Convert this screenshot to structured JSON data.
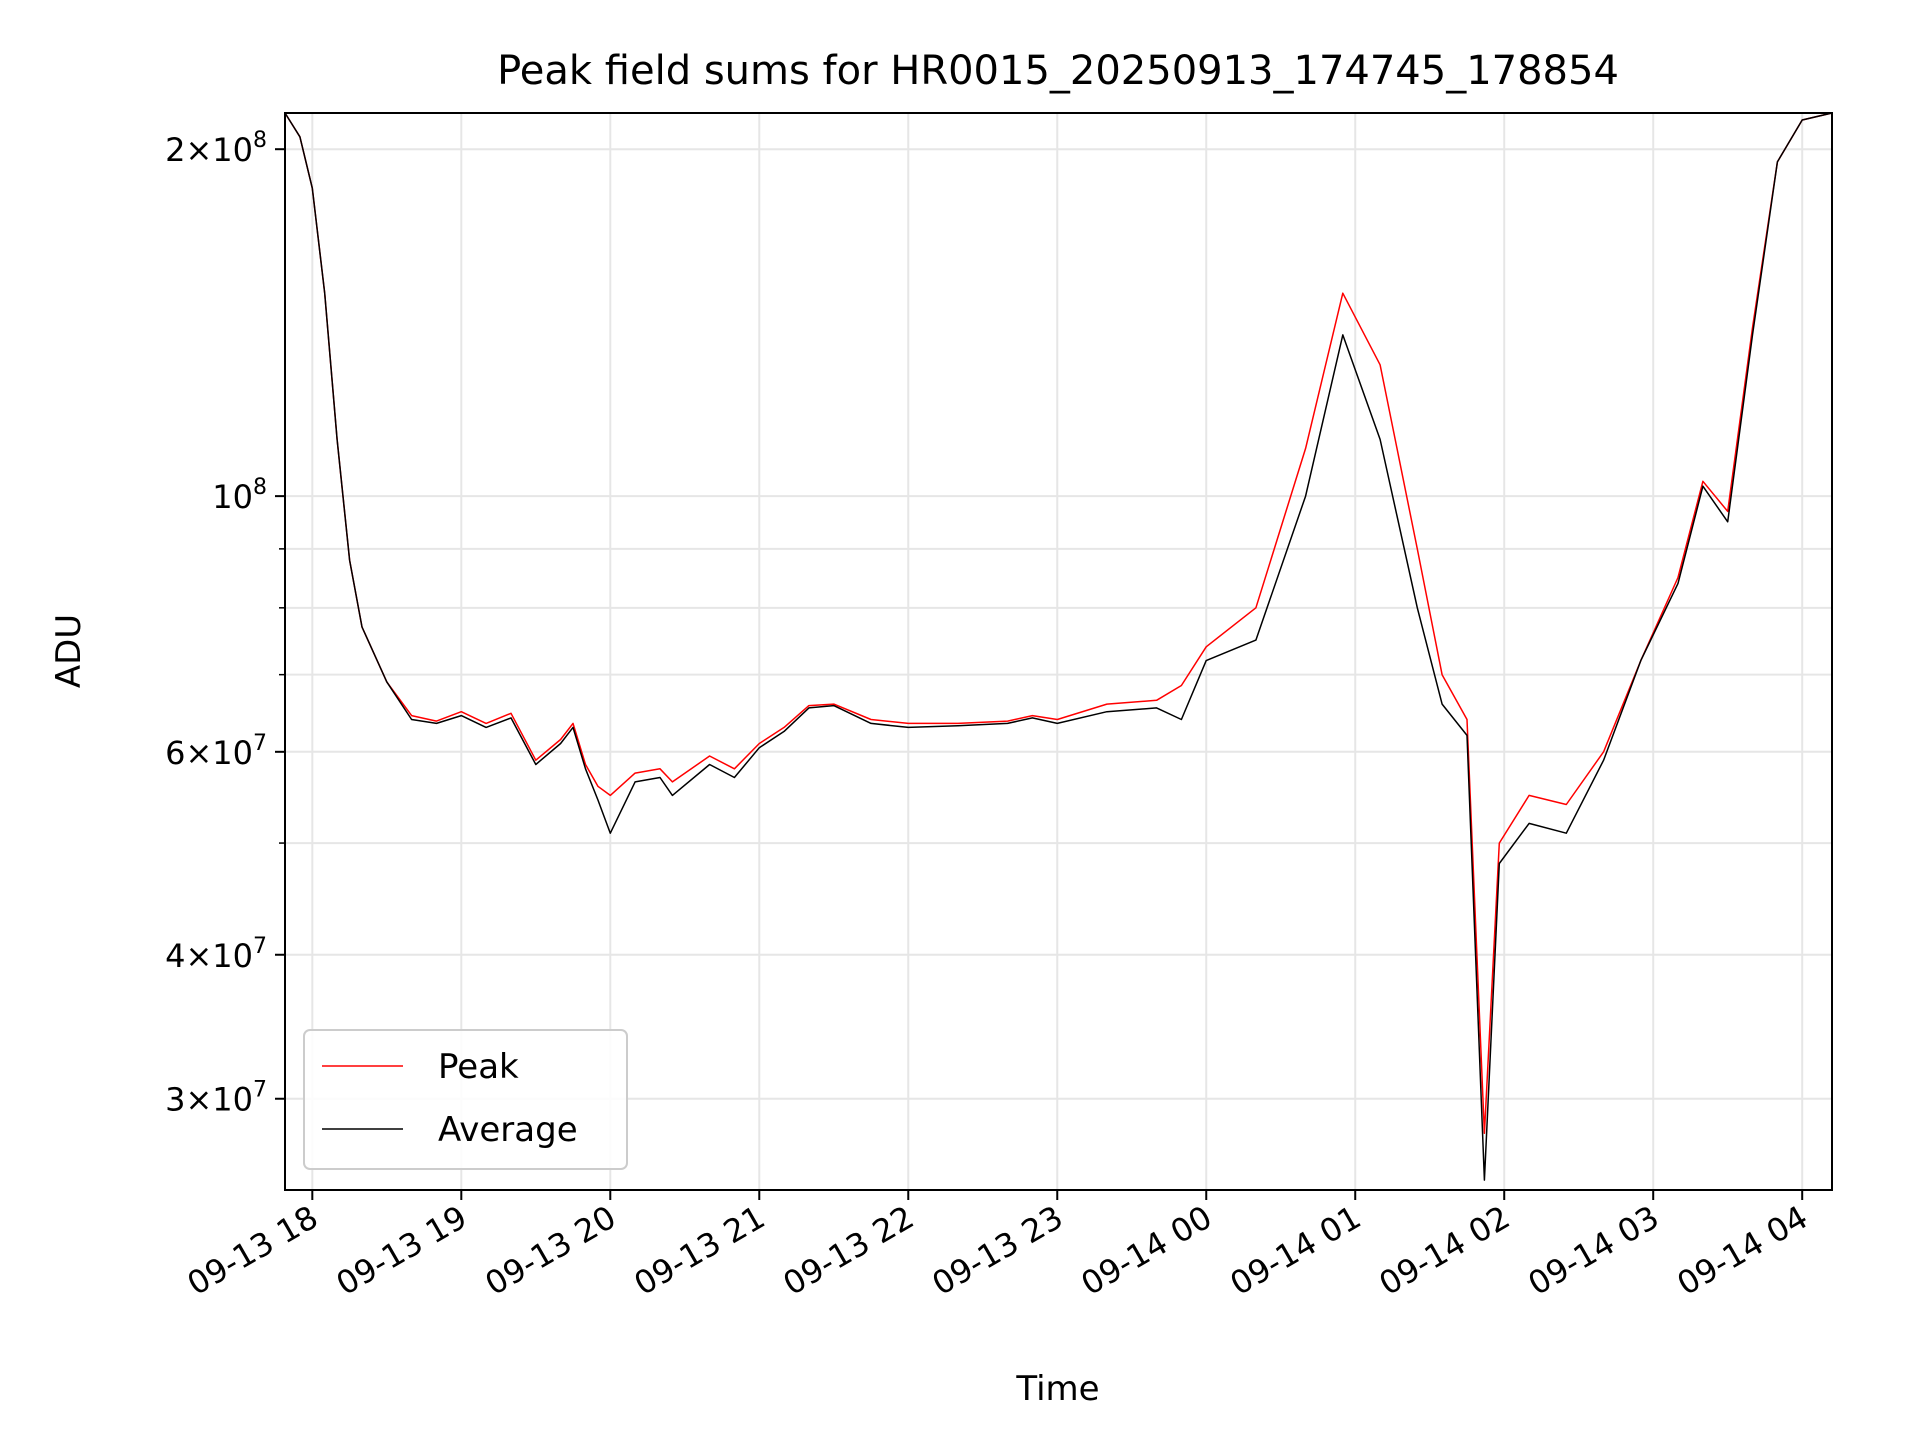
{
  "chart_data": {
    "type": "line",
    "title": "Peak field sums for HR0015_20250913_174745_178854",
    "xlabel": "Time",
    "ylabel": "ADU",
    "y_scale": "log",
    "ylim": [
      25000000,
      215000000
    ],
    "xlim": [
      "2025-09-13 17:49",
      "2025-09-14 04:12"
    ],
    "grid": true,
    "legend_position": "lower-left",
    "x_ticks": [
      {
        "t": "2025-09-13 18:00",
        "label": "09-13 18"
      },
      {
        "t": "2025-09-13 19:00",
        "label": "09-13 19"
      },
      {
        "t": "2025-09-13 20:00",
        "label": "09-13 20"
      },
      {
        "t": "2025-09-13 21:00",
        "label": "09-13 21"
      },
      {
        "t": "2025-09-13 22:00",
        "label": "09-13 22"
      },
      {
        "t": "2025-09-13 23:00",
        "label": "09-13 23"
      },
      {
        "t": "2025-09-14 00:00",
        "label": "09-14 00"
      },
      {
        "t": "2025-09-14 01:00",
        "label": "09-14 01"
      },
      {
        "t": "2025-09-14 02:00",
        "label": "09-14 02"
      },
      {
        "t": "2025-09-14 03:00",
        "label": "09-14 03"
      },
      {
        "t": "2025-09-14 04:00",
        "label": "09-14 04"
      }
    ],
    "y_ticks": [
      {
        "v": 30000000,
        "mant": "3",
        "exp": "7"
      },
      {
        "v": 40000000,
        "mant": "4",
        "exp": "7"
      },
      {
        "v": 60000000,
        "mant": "6",
        "exp": "7"
      },
      {
        "v": 100000000,
        "mant": "",
        "exp": "8"
      },
      {
        "v": 200000000,
        "mant": "2",
        "exp": "8"
      }
    ],
    "y_minor_ticks": [
      50000000,
      70000000,
      80000000,
      90000000
    ],
    "series": [
      {
        "name": "Peak",
        "color": "#ff0000",
        "points": [
          [
            "2025-09-13 17:49",
            215000000
          ],
          [
            "2025-09-13 17:55",
            205000000
          ],
          [
            "2025-09-13 18:00",
            185000000
          ],
          [
            "2025-09-13 18:05",
            150000000
          ],
          [
            "2025-09-13 18:10",
            112000000
          ],
          [
            "2025-09-13 18:15",
            88000000
          ],
          [
            "2025-09-13 18:20",
            77000000
          ],
          [
            "2025-09-13 18:30",
            69000000
          ],
          [
            "2025-09-13 18:40",
            64500000
          ],
          [
            "2025-09-13 18:50",
            63800000
          ],
          [
            "2025-09-13 19:00",
            65000000
          ],
          [
            "2025-09-13 19:10",
            63500000
          ],
          [
            "2025-09-13 19:20",
            64800000
          ],
          [
            "2025-09-13 19:30",
            59000000
          ],
          [
            "2025-09-13 19:40",
            61500000
          ],
          [
            "2025-09-13 19:45",
            63500000
          ],
          [
            "2025-09-13 19:50",
            58500000
          ],
          [
            "2025-09-13 19:55",
            56000000
          ],
          [
            "2025-09-13 20:00",
            55000000
          ],
          [
            "2025-09-13 20:10",
            57500000
          ],
          [
            "2025-09-13 20:20",
            58000000
          ],
          [
            "2025-09-13 20:25",
            56500000
          ],
          [
            "2025-09-13 20:40",
            59500000
          ],
          [
            "2025-09-13 20:50",
            58000000
          ],
          [
            "2025-09-13 21:00",
            61000000
          ],
          [
            "2025-09-13 21:10",
            63000000
          ],
          [
            "2025-09-13 21:20",
            65800000
          ],
          [
            "2025-09-13 21:30",
            66000000
          ],
          [
            "2025-09-13 21:45",
            64000000
          ],
          [
            "2025-09-13 22:00",
            63500000
          ],
          [
            "2025-09-13 22:20",
            63500000
          ],
          [
            "2025-09-13 22:40",
            63800000
          ],
          [
            "2025-09-13 22:50",
            64500000
          ],
          [
            "2025-09-13 23:00",
            64000000
          ],
          [
            "2025-09-13 23:20",
            66000000
          ],
          [
            "2025-09-13 23:40",
            66500000
          ],
          [
            "2025-09-13 23:50",
            68500000
          ],
          [
            "2025-09-14 00:00",
            74000000
          ],
          [
            "2025-09-14 00:20",
            80000000
          ],
          [
            "2025-09-14 00:40",
            110000000
          ],
          [
            "2025-09-14 00:55",
            150000000
          ],
          [
            "2025-09-14 01:10",
            130000000
          ],
          [
            "2025-09-14 01:25",
            90000000
          ],
          [
            "2025-09-14 01:35",
            70000000
          ],
          [
            "2025-09-14 01:45",
            64000000
          ],
          [
            "2025-09-14 01:52",
            28000000
          ],
          [
            "2025-09-14 01:58",
            50000000
          ],
          [
            "2025-09-14 02:10",
            55000000
          ],
          [
            "2025-09-14 02:25",
            54000000
          ],
          [
            "2025-09-14 02:40",
            60000000
          ],
          [
            "2025-09-14 02:55",
            72000000
          ],
          [
            "2025-09-14 03:10",
            85000000
          ],
          [
            "2025-09-14 03:20",
            103000000
          ],
          [
            "2025-09-14 03:30",
            97000000
          ],
          [
            "2025-09-14 03:40",
            140000000
          ],
          [
            "2025-09-14 03:50",
            195000000
          ],
          [
            "2025-09-14 04:00",
            212000000
          ],
          [
            "2025-09-14 04:12",
            215000000
          ]
        ]
      },
      {
        "name": "Average",
        "color": "#000000",
        "points": [
          [
            "2025-09-13 17:49",
            215000000
          ],
          [
            "2025-09-13 17:55",
            205000000
          ],
          [
            "2025-09-13 18:00",
            185000000
          ],
          [
            "2025-09-13 18:05",
            150000000
          ],
          [
            "2025-09-13 18:10",
            112000000
          ],
          [
            "2025-09-13 18:15",
            88000000
          ],
          [
            "2025-09-13 18:20",
            77000000
          ],
          [
            "2025-09-13 18:30",
            69000000
          ],
          [
            "2025-09-13 18:40",
            64000000
          ],
          [
            "2025-09-13 18:50",
            63500000
          ],
          [
            "2025-09-13 19:00",
            64500000
          ],
          [
            "2025-09-13 19:10",
            63000000
          ],
          [
            "2025-09-13 19:20",
            64200000
          ],
          [
            "2025-09-13 19:30",
            58500000
          ],
          [
            "2025-09-13 19:40",
            61000000
          ],
          [
            "2025-09-13 19:45",
            63000000
          ],
          [
            "2025-09-13 19:50",
            58000000
          ],
          [
            "2025-09-13 19:55",
            54500000
          ],
          [
            "2025-09-13 20:00",
            51000000
          ],
          [
            "2025-09-13 20:10",
            56500000
          ],
          [
            "2025-09-13 20:20",
            57000000
          ],
          [
            "2025-09-13 20:25",
            55000000
          ],
          [
            "2025-09-13 20:40",
            58500000
          ],
          [
            "2025-09-13 20:50",
            57000000
          ],
          [
            "2025-09-13 21:00",
            60500000
          ],
          [
            "2025-09-13 21:10",
            62500000
          ],
          [
            "2025-09-13 21:20",
            65500000
          ],
          [
            "2025-09-13 21:30",
            65800000
          ],
          [
            "2025-09-13 21:45",
            63500000
          ],
          [
            "2025-09-13 22:00",
            63000000
          ],
          [
            "2025-09-13 22:20",
            63200000
          ],
          [
            "2025-09-13 22:40",
            63500000
          ],
          [
            "2025-09-13 22:50",
            64200000
          ],
          [
            "2025-09-13 23:00",
            63500000
          ],
          [
            "2025-09-13 23:20",
            65000000
          ],
          [
            "2025-09-13 23:40",
            65500000
          ],
          [
            "2025-09-13 23:50",
            64000000
          ],
          [
            "2025-09-14 00:00",
            72000000
          ],
          [
            "2025-09-14 00:20",
            75000000
          ],
          [
            "2025-09-14 00:40",
            100000000
          ],
          [
            "2025-09-14 00:55",
            138000000
          ],
          [
            "2025-09-14 01:10",
            112000000
          ],
          [
            "2025-09-14 01:25",
            80000000
          ],
          [
            "2025-09-14 01:35",
            66000000
          ],
          [
            "2025-09-14 01:45",
            62000000
          ],
          [
            "2025-09-14 01:52",
            25500000
          ],
          [
            "2025-09-14 01:58",
            48000000
          ],
          [
            "2025-09-14 02:10",
            52000000
          ],
          [
            "2025-09-14 02:25",
            51000000
          ],
          [
            "2025-09-14 02:40",
            59000000
          ],
          [
            "2025-09-14 02:55",
            72000000
          ],
          [
            "2025-09-14 03:10",
            84000000
          ],
          [
            "2025-09-14 03:20",
            102000000
          ],
          [
            "2025-09-14 03:30",
            95000000
          ],
          [
            "2025-09-14 03:40",
            138000000
          ],
          [
            "2025-09-14 03:50",
            195000000
          ],
          [
            "2025-09-14 04:00",
            212000000
          ],
          [
            "2025-09-14 04:12",
            215000000
          ]
        ]
      }
    ]
  }
}
